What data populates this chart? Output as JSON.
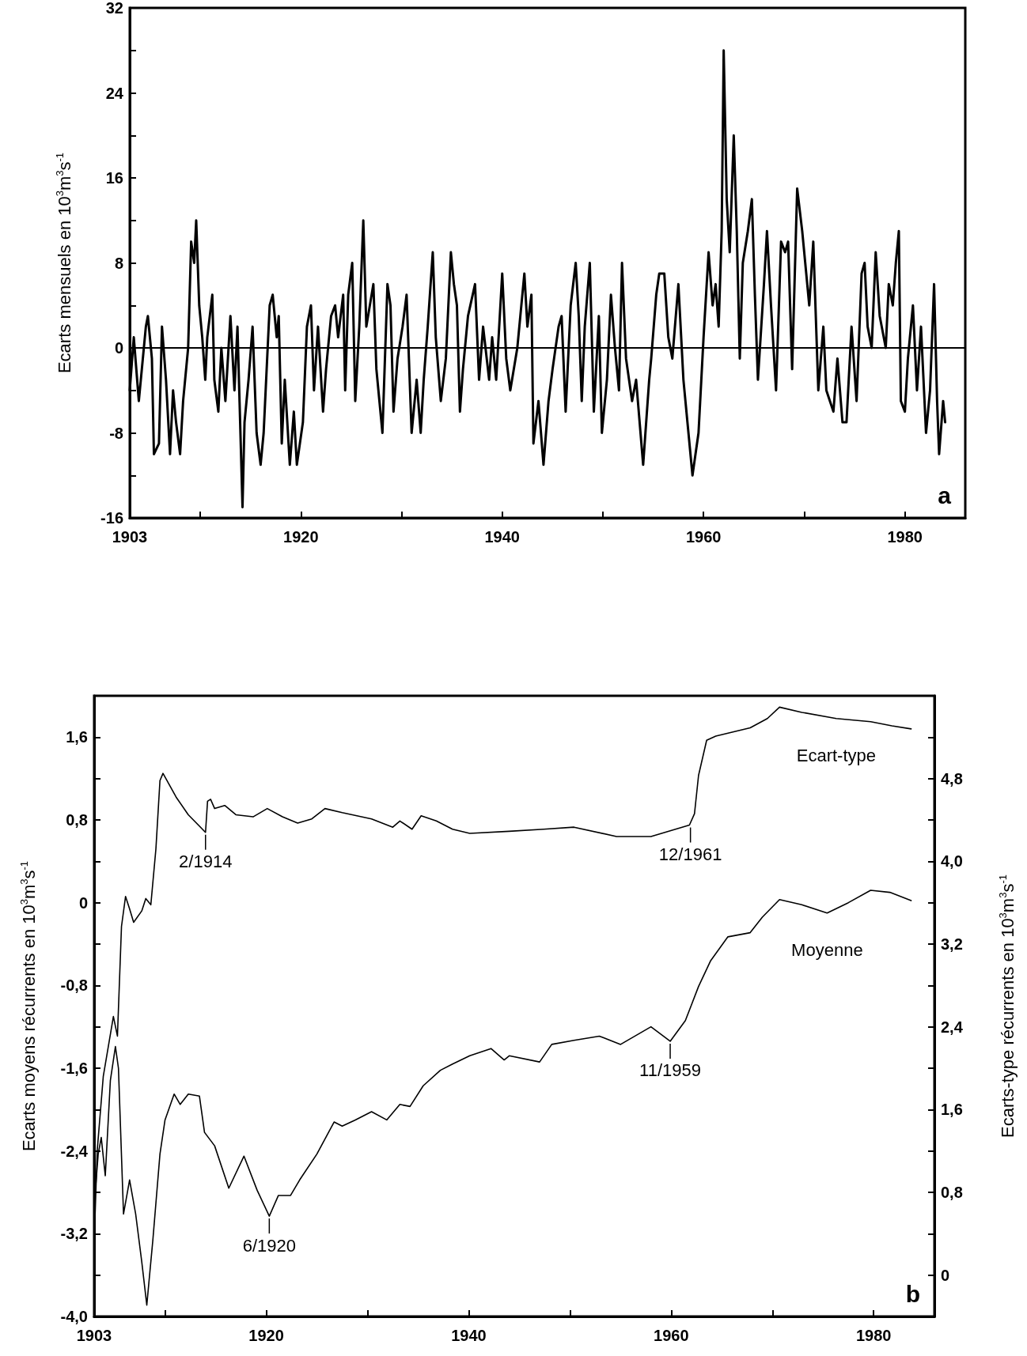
{
  "chart_data": [
    {
      "type": "line",
      "ylabel": "Ecarts mensuels en 10$^{3}$m$^{3}$s$^{-1}$",
      "annotations": [
        "a"
      ],
      "xlim": [
        1903,
        1986
      ],
      "xticks": [
        1903,
        {
          "value": 1910,
          "label": null
        },
        1920,
        {
          "value": 1930,
          "label": null
        },
        1940,
        {
          "value": 1950,
          "label": null
        },
        1960,
        {
          "value": 1970,
          "label": null
        },
        1980
      ],
      "ylim": [
        -16,
        32
      ],
      "yticks": [
        -16,
        {
          "value": -12,
          "label": null
        },
        -8,
        {
          "value": -4,
          "label": null
        },
        0,
        {
          "value": 4,
          "label": null
        },
        8,
        {
          "value": 12,
          "label": null
        },
        16,
        {
          "value": 20,
          "label": null
        },
        24,
        {
          "value": 28,
          "label": null
        },
        32
      ],
      "grid": false,
      "legend": false,
      "marker": "none",
      "line_style": "solid",
      "ref_lines": [
        {
          "axis": "y",
          "value": 0,
          "color": "#000000"
        }
      ],
      "series": [
        {
          "color": "#000000",
          "x": [
            1903.0,
            1903.4,
            1903.9,
            1904.6,
            1904.8,
            1905.2,
            1905.4,
            1905.9,
            1906.2,
            1906.6,
            1907.0,
            1907.3,
            1907.6,
            1908.0,
            1908.3,
            1908.8,
            1909.1,
            1909.4,
            1909.6,
            1909.9,
            1910.2,
            1910.5,
            1910.7,
            1911.2,
            1911.4,
            1911.8,
            1912.1,
            1912.5,
            1913.0,
            1913.4,
            1913.7,
            1914.2,
            1914.4,
            1914.8,
            1915.2,
            1915.6,
            1916.0,
            1916.3,
            1916.9,
            1917.2,
            1917.6,
            1917.8,
            1918.1,
            1918.4,
            1918.9,
            1919.3,
            1919.6,
            1920.2,
            1920.6,
            1921.0,
            1921.3,
            1921.7,
            1922.2,
            1922.5,
            1923.0,
            1923.4,
            1923.7,
            1924.2,
            1924.4,
            1924.7,
            1925.1,
            1925.4,
            1925.8,
            1926.2,
            1926.5,
            1927.2,
            1927.5,
            1928.1,
            1928.6,
            1928.9,
            1929.2,
            1929.6,
            1930.1,
            1930.5,
            1931.0,
            1931.5,
            1931.9,
            1932.2,
            1932.6,
            1933.1,
            1933.4,
            1933.9,
            1934.4,
            1934.9,
            1935.2,
            1935.5,
            1935.8,
            1936.1,
            1936.6,
            1937.3,
            1937.7,
            1938.1,
            1938.7,
            1939.0,
            1939.4,
            1940.0,
            1940.4,
            1940.8,
            1941.5,
            1941.8,
            1942.2,
            1942.5,
            1942.9,
            1943.1,
            1943.6,
            1944.1,
            1944.6,
            1945.0,
            1945.6,
            1945.9,
            1946.3,
            1946.8,
            1947.3,
            1947.6,
            1947.9,
            1948.2,
            1948.7,
            1949.1,
            1949.6,
            1949.9,
            1950.4,
            1950.8,
            1951.2,
            1951.6,
            1951.9,
            1952.3,
            1952.9,
            1953.3,
            1954.0,
            1954.6,
            1954.8,
            1955.3,
            1955.6,
            1956.1,
            1956.5,
            1956.9,
            1957.5,
            1958.0,
            1958.4,
            1958.9,
            1959.5,
            1960.0,
            1960.5,
            1960.9,
            1961.2,
            1961.5,
            1961.8,
            1962.0,
            1962.3,
            1962.6,
            1963.0,
            1963.3,
            1963.6,
            1963.9,
            1964.4,
            1964.8,
            1965.1,
            1965.4,
            1966.0,
            1966.3,
            1966.7,
            1967.2,
            1967.7,
            1968.1,
            1968.4,
            1968.8,
            1969.3,
            1969.8,
            1970.2,
            1970.5,
            1970.9,
            1971.4,
            1971.9,
            1972.2,
            1972.9,
            1973.3,
            1973.8,
            1974.2,
            1974.7,
            1975.2,
            1975.7,
            1976.0,
            1976.3,
            1976.7,
            1977.1,
            1977.5,
            1978.1,
            1978.4,
            1978.8,
            1979.1,
            1979.4,
            1979.6,
            1980.0,
            1980.3,
            1980.8,
            1981.2,
            1981.6,
            1982.1,
            1982.5,
            1982.9,
            1983.2,
            1983.4,
            1983.8,
            1984.0
          ],
          "values": [
            -4,
            1,
            -5,
            2,
            3,
            -1,
            -10,
            -9,
            2,
            -3,
            -10,
            -4,
            -7,
            -10,
            -5,
            0,
            10,
            8,
            12,
            4,
            1,
            -3,
            1,
            5,
            -3,
            -6,
            0,
            -5,
            3,
            -4,
            2,
            -15,
            -7,
            -3,
            2,
            -8,
            -11,
            -8,
            4,
            5,
            1,
            3,
            -9,
            -3,
            -11,
            -6,
            -11,
            -7,
            2,
            4,
            -4,
            2,
            -6,
            -2,
            3,
            4,
            1,
            5,
            -4,
            5,
            8,
            -5,
            2,
            12,
            2,
            6,
            -2,
            -8,
            6,
            4,
            -6,
            -1,
            2,
            5,
            -8,
            -3,
            -8,
            -3,
            2,
            9,
            1,
            -5,
            -1,
            9,
            6,
            4,
            -6,
            -2,
            3,
            6,
            -3,
            2,
            -3,
            1,
            -3,
            7,
            -1,
            -4,
            0,
            3,
            7,
            2,
            5,
            -9,
            -5,
            -11,
            -5,
            -2,
            2,
            3,
            -6,
            4,
            8,
            3,
            -5,
            2,
            8,
            -6,
            3,
            -8,
            -3,
            5,
            0,
            -4,
            8,
            -1,
            -5,
            -3,
            -11,
            -3,
            -1,
            5,
            7,
            7,
            1,
            -1,
            6,
            -3,
            -7,
            -12,
            -8,
            1,
            9,
            4,
            6,
            2,
            11,
            28,
            14,
            9,
            20,
            11,
            -1,
            8,
            11,
            14,
            5,
            -3,
            6,
            11,
            4,
            -4,
            10,
            9,
            10,
            -2,
            15,
            11,
            7,
            4,
            10,
            -4,
            2,
            -4,
            -6,
            -1,
            -7,
            -7,
            2,
            -5,
            7,
            8,
            2,
            0,
            9,
            3,
            0,
            6,
            4,
            8,
            11,
            -5,
            -6,
            -1,
            4,
            -4,
            2,
            -8,
            -4,
            6,
            -5,
            -10,
            -5,
            -7
          ]
        }
      ]
    },
    {
      "type": "line",
      "ylabel": "Ecarts moyens récurrents en 10$^{3}$m$^{3}$s$^{-1}$",
      "y2label": "Ecarts-type récurrents en 10$^{3}$m$^{3}$s$^{-1}$",
      "annotations": [
        "b",
        {
          "text": "2/1914",
          "x": 1914.0,
          "y": 0.68
        },
        {
          "text": "12/1961",
          "x": 1961.9,
          "y": 0.75
        },
        {
          "text": "6/1920",
          "x": 1920.3,
          "y": -3.03
        },
        {
          "text": "11/1959",
          "x": 1959.9,
          "y": -1.34
        }
      ],
      "xlim": [
        1903,
        1986
      ],
      "xticks": [
        1903,
        {
          "value": 1910,
          "label": null
        },
        1920,
        {
          "value": 1930,
          "label": null
        },
        1940,
        {
          "value": 1950,
          "label": null
        },
        1960,
        {
          "value": 1970,
          "label": null
        },
        1980
      ],
      "ylim": [
        -4.0,
        2.0
      ],
      "yticks": [
        {
          "value": -4.0,
          "label": "-4,0"
        },
        {
          "value": -3.6,
          "label": null
        },
        {
          "value": -3.2,
          "label": "-3,2"
        },
        {
          "value": -2.8,
          "label": null
        },
        {
          "value": -2.4,
          "label": "-2,4"
        },
        {
          "value": -2.0,
          "label": null
        },
        {
          "value": -1.6,
          "label": "-1,6"
        },
        {
          "value": -1.2,
          "label": null
        },
        {
          "value": -0.8,
          "label": "-0,8"
        },
        {
          "value": -0.4,
          "label": null
        },
        0,
        {
          "value": 0.4,
          "label": null
        },
        {
          "value": 0.8,
          "label": "0,8"
        },
        {
          "value": 1.2,
          "label": null
        },
        {
          "value": 1.6,
          "label": "1,6"
        }
      ],
      "y2lim": [
        -0.4,
        5.6
      ],
      "y2ticks": [
        0,
        {
          "value": 0.4,
          "label": null
        },
        {
          "value": 0.8,
          "label": "0,8"
        },
        {
          "value": 1.2,
          "label": null
        },
        {
          "value": 1.6,
          "label": "1,6"
        },
        {
          "value": 2.0,
          "label": null
        },
        {
          "value": 2.4,
          "label": "2,4"
        },
        {
          "value": 2.8,
          "label": null
        },
        {
          "value": 3.2,
          "label": "3,2"
        },
        {
          "value": 3.6,
          "label": null
        },
        {
          "value": 4.0,
          "label": "4,0"
        },
        {
          "value": 4.4,
          "label": null
        },
        {
          "value": 4.8,
          "label": "4,8"
        },
        {
          "value": 5.2,
          "label": null
        }
      ],
      "grid": false,
      "legend": false,
      "marker": "none",
      "line_style": "solid",
      "series": [
        {
          "name": "Ecart-type",
          "color": "#000000",
          "axis": "y2",
          "x": [
            1903.0,
            1903.3,
            1903.9,
            1904.9,
            1905.3,
            1905.7,
            1906.1,
            1906.5,
            1906.9,
            1907.7,
            1908.1,
            1908.6,
            1909.1,
            1909.5,
            1909.8,
            1911.1,
            1912.3,
            1914.0,
            1914.2,
            1914.5,
            1914.9,
            1915.9,
            1917.0,
            1918.7,
            1920.1,
            1921.6,
            1923.1,
            1924.5,
            1925.8,
            1927.5,
            1930.4,
            1932.5,
            1933.2,
            1934.4,
            1935.3,
            1936.8,
            1938.4,
            1940.1,
            1944.0,
            1947.4,
            1950.4,
            1954.6,
            1958.0,
            1961.8,
            1962.3,
            1962.7,
            1963.5,
            1964.4,
            1966.1,
            1967.8,
            1969.5,
            1970.7,
            1972.9,
            1976.3,
            1979.7,
            1981.8,
            1983.7
          ],
          "values": [
            0.3,
            1.2,
            1.92,
            2.5,
            2.31,
            3.37,
            3.66,
            3.54,
            3.41,
            3.52,
            3.64,
            3.58,
            4.12,
            4.78,
            4.85,
            4.62,
            4.45,
            4.28,
            4.58,
            4.6,
            4.51,
            4.54,
            4.45,
            4.43,
            4.51,
            4.43,
            4.37,
            4.41,
            4.51,
            4.47,
            4.41,
            4.33,
            4.39,
            4.31,
            4.44,
            4.39,
            4.31,
            4.27,
            4.29,
            4.31,
            4.33,
            4.24,
            4.24,
            4.35,
            4.46,
            4.83,
            5.17,
            5.21,
            5.25,
            5.29,
            5.38,
            5.49,
            5.44,
            5.38,
            5.35,
            5.31,
            5.28
          ]
        },
        {
          "name": "Moyenne",
          "color": "#000000",
          "x": [
            1903.0,
            1903.4,
            1903.7,
            1904.1,
            1904.6,
            1905.1,
            1905.4,
            1905.9,
            1906.5,
            1907.1,
            1907.7,
            1908.2,
            1908.8,
            1909.5,
            1910.0,
            1910.9,
            1911.5,
            1912.3,
            1913.4,
            1913.9,
            1914.9,
            1916.3,
            1917.8,
            1919.1,
            1920.3,
            1921.2,
            1922.4,
            1923.3,
            1925.0,
            1926.7,
            1927.5,
            1928.8,
            1930.4,
            1931.9,
            1933.2,
            1934.2,
            1935.5,
            1937.2,
            1938.4,
            1940.1,
            1942.2,
            1943.5,
            1944.0,
            1947.0,
            1948.2,
            1950.4,
            1952.9,
            1955.0,
            1958.0,
            1959.9,
            1961.4,
            1962.7,
            1963.9,
            1965.6,
            1967.8,
            1969.0,
            1970.7,
            1972.9,
            1975.4,
            1977.5,
            1979.7,
            1981.6,
            1983.7
          ],
          "values": [
            -2.93,
            -2.43,
            -2.27,
            -2.64,
            -1.72,
            -1.39,
            -1.6,
            -3.01,
            -2.68,
            -3.01,
            -3.47,
            -3.89,
            -3.26,
            -2.43,
            -2.1,
            -1.85,
            -1.95,
            -1.85,
            -1.87,
            -2.22,
            -2.35,
            -2.76,
            -2.45,
            -2.78,
            -3.03,
            -2.83,
            -2.83,
            -2.68,
            -2.43,
            -2.12,
            -2.16,
            -2.1,
            -2.02,
            -2.1,
            -1.95,
            -1.97,
            -1.77,
            -1.62,
            -1.56,
            -1.48,
            -1.41,
            -1.52,
            -1.48,
            -1.54,
            -1.37,
            -1.33,
            -1.29,
            -1.37,
            -1.2,
            -1.34,
            -1.14,
            -0.81,
            -0.56,
            -0.33,
            -0.29,
            -0.14,
            0.03,
            -0.02,
            -0.1,
            0.0,
            0.12,
            0.1,
            0.02
          ]
        }
      ]
    }
  ]
}
